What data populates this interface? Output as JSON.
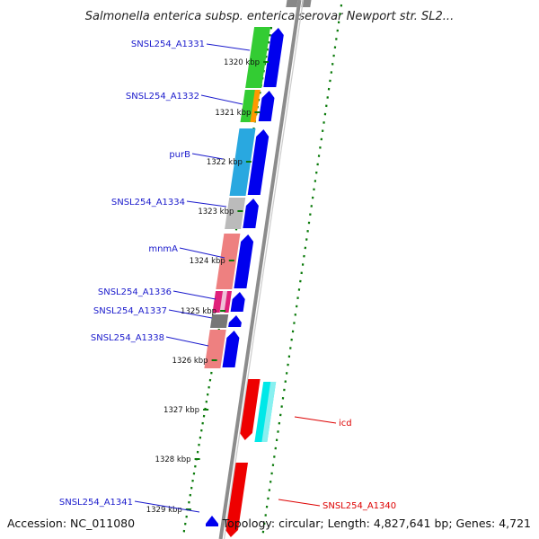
{
  "title": "Salmonella enterica subsp. enterica serovar Newport str. SL2...",
  "footer": {
    "accession": "Accession: NC_011080",
    "summary": "Topology: circular; Length: 4,827,641 bp; Genes: 4,721"
  },
  "colors": {
    "backbone": "#8c8c8c",
    "tick": "#0a7a0a",
    "forward_label": "#1a1acc",
    "reverse_label": "#dd0000",
    "cds_forward": "#0000ee",
    "cds_reverse": "#ee0000"
  },
  "kbp_ticks": [
    {
      "label": "1320 kbp"
    },
    {
      "label": "1321 kbp"
    },
    {
      "label": "1322 kbp"
    },
    {
      "label": "1323 kbp"
    },
    {
      "label": "1324 kbp"
    },
    {
      "label": "1325 kbp"
    },
    {
      "label": "1326 kbp"
    },
    {
      "label": "1327 kbp"
    },
    {
      "label": "1328 kbp"
    },
    {
      "label": "1329 kbp"
    }
  ],
  "genes": [
    {
      "name": "SNSL254_A1331",
      "strand": "forward",
      "cog_color": "#33cc33"
    },
    {
      "name": "SNSL254_A1332",
      "strand": "forward",
      "cog_color": "#33cc33"
    },
    {
      "name": "purB",
      "strand": "forward",
      "cog_color": "#29a8e0"
    },
    {
      "name": "SNSL254_A1334",
      "strand": "forward",
      "cog_color": "#bbbbbb"
    },
    {
      "name": "mnmA",
      "strand": "forward",
      "cog_color": "#ee8080"
    },
    {
      "name": "SNSL254_A1336",
      "strand": "forward",
      "cog_color": "#e0207a"
    },
    {
      "name": "SNSL254_A1337",
      "strand": "forward",
      "cog_color": "#777777"
    },
    {
      "name": "SNSL254_A1338",
      "strand": "forward",
      "cog_color": "#ee8080"
    },
    {
      "name": "icd",
      "strand": "reverse",
      "cog_color": "#00e8e8"
    },
    {
      "name": "SNSL254_A1340",
      "strand": "reverse",
      "cog_color": "#00e8e8"
    },
    {
      "name": "SNSL254_A1341",
      "strand": "forward",
      "cog_color": "#0000ee"
    }
  ]
}
